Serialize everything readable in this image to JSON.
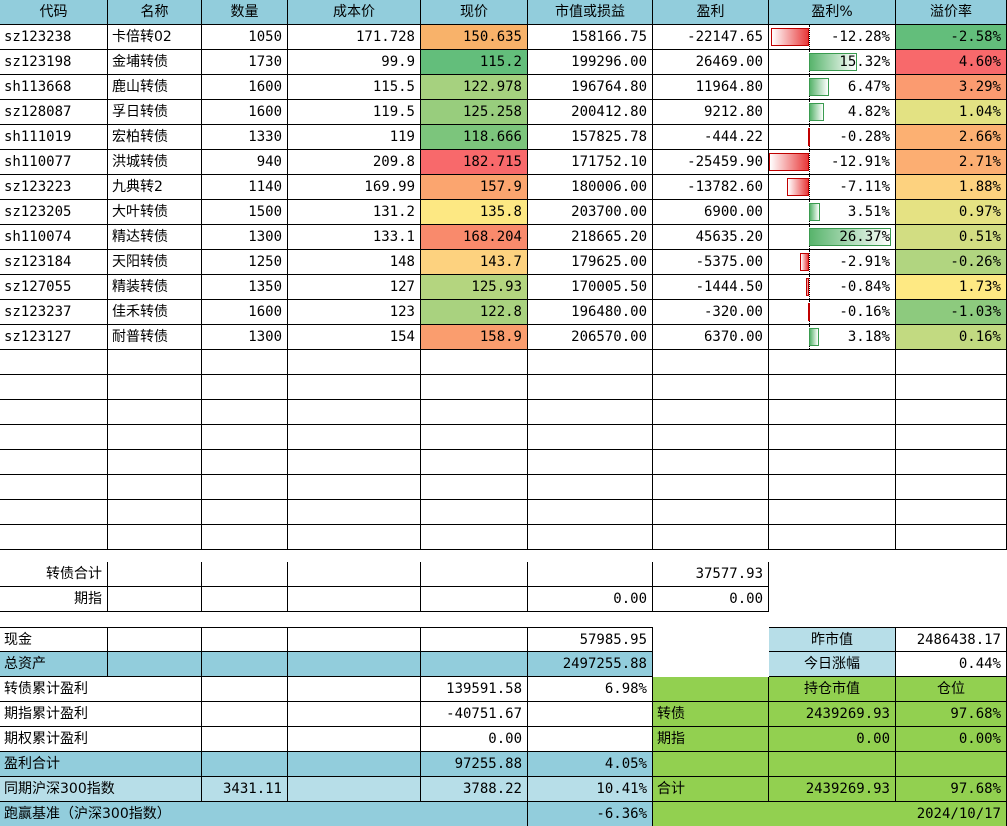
{
  "header": {
    "code": "代码",
    "name": "名称",
    "qty": "数量",
    "cost": "成本价",
    "price": "现价",
    "value": "市值或损益",
    "profit": "盈利",
    "profit_pct": "盈利%",
    "premium": "溢价率"
  },
  "rows": [
    {
      "code": "sz123238",
      "name": "卡倍转02",
      "qty": "1050",
      "cost": "171.728",
      "price": "150.635",
      "value": "158166.75",
      "profit": "-22147.65",
      "pct": "-12.28%",
      "pct_num": -12.28,
      "premium": "-2.58%"
    },
    {
      "code": "sz123198",
      "name": "金埔转债",
      "qty": "1730",
      "cost": "99.9",
      "price": "115.2",
      "value": "199296.00",
      "profit": "26469.00",
      "pct": "15.32%",
      "pct_num": 15.32,
      "premium": "4.60%"
    },
    {
      "code": "sh113668",
      "name": "鹿山转债",
      "qty": "1600",
      "cost": "115.5",
      "price": "122.978",
      "value": "196764.80",
      "profit": "11964.80",
      "pct": "6.47%",
      "pct_num": 6.47,
      "premium": "3.29%"
    },
    {
      "code": "sz128087",
      "name": "孚日转债",
      "qty": "1600",
      "cost": "119.5",
      "price": "125.258",
      "value": "200412.80",
      "profit": "9212.80",
      "pct": "4.82%",
      "pct_num": 4.82,
      "premium": "1.04%"
    },
    {
      "code": "sh111019",
      "name": "宏柏转债",
      "qty": "1330",
      "cost": "119",
      "price": "118.666",
      "value": "157825.78",
      "profit": "-444.22",
      "pct": "-0.28%",
      "pct_num": -0.28,
      "premium": "2.66%"
    },
    {
      "code": "sh110077",
      "name": "洪城转债",
      "qty": "940",
      "cost": "209.8",
      "price": "182.715",
      "value": "171752.10",
      "profit": "-25459.90",
      "pct": "-12.91%",
      "pct_num": -12.91,
      "premium": "2.71%"
    },
    {
      "code": "sz123223",
      "name": "九典转2",
      "qty": "1140",
      "cost": "169.99",
      "price": "157.9",
      "value": "180006.00",
      "profit": "-13782.60",
      "pct": "-7.11%",
      "pct_num": -7.11,
      "premium": "1.88%"
    },
    {
      "code": "sz123205",
      "name": "大叶转债",
      "qty": "1500",
      "cost": "131.2",
      "price": "135.8",
      "value": "203700.00",
      "profit": "6900.00",
      "pct": "3.51%",
      "pct_num": 3.51,
      "premium": "0.97%"
    },
    {
      "code": "sh110074",
      "name": "精达转债",
      "qty": "1300",
      "cost": "133.1",
      "price": "168.204",
      "value": "218665.20",
      "profit": "45635.20",
      "pct": "26.37%",
      "pct_num": 26.37,
      "premium": "0.51%"
    },
    {
      "code": "sz123184",
      "name": "天阳转债",
      "qty": "1250",
      "cost": "148",
      "price": "143.7",
      "value": "179625.00",
      "profit": "-5375.00",
      "pct": "-2.91%",
      "pct_num": -2.91,
      "premium": "-0.26%"
    },
    {
      "code": "sz127055",
      "name": "精装转债",
      "qty": "1350",
      "cost": "127",
      "price": "125.93",
      "value": "170005.50",
      "profit": "-1444.50",
      "pct": "-0.84%",
      "pct_num": -0.84,
      "premium": "1.73%"
    },
    {
      "code": "sz123237",
      "name": "佳禾转债",
      "qty": "1600",
      "cost": "123",
      "price": "122.8",
      "value": "196480.00",
      "profit": "-320.00",
      "pct": "-0.16%",
      "pct_num": -0.16,
      "premium": "-1.03%"
    },
    {
      "code": "sz123127",
      "name": "耐普转债",
      "qty": "1300",
      "cost": "154",
      "price": "158.9",
      "value": "206570.00",
      "profit": "6370.00",
      "pct": "3.18%",
      "pct_num": 3.18,
      "premium": "0.16%"
    }
  ],
  "colors": {
    "header_bg": "#92cddc",
    "summary_bg": "#92cddc",
    "light_blue": "#b7dee8",
    "green_panel": "#92d050",
    "price": [
      "#f8b26a",
      "#63be7b",
      "#a6d17f",
      "#98cd7d",
      "#7cc57c",
      "#f8696b",
      "#fba56f",
      "#fde883",
      "#f98a6c",
      "#fdd27f",
      "#b4d57f",
      "#a9d27f",
      "#fa9d6e"
    ],
    "premium": [
      "#63be7b",
      "#f8696b",
      "#fb9b70",
      "#e3e283",
      "#fcb072",
      "#fcae72",
      "#fdd27f",
      "#e5e283",
      "#d2dd82",
      "#b1d580",
      "#fee983",
      "#8dca7e",
      "#c2da81"
    ]
  },
  "convert_total": {
    "label": "转债合计",
    "profit": "37577.93"
  },
  "futures": {
    "label": "期指",
    "value": "0.00",
    "profit": "0.00"
  },
  "cash": {
    "label": "现金",
    "value": "57985.95"
  },
  "total_assets": {
    "label": "总资产",
    "value": "2497255.88"
  },
  "prev_value": {
    "label": "昨市值",
    "value": "2486438.17"
  },
  "today_change": {
    "label": "今日涨幅",
    "value": "0.44%"
  },
  "cb_cum": {
    "label": "转债累计盈利",
    "value": "139591.58",
    "pct": "6.98%"
  },
  "fut_cum": {
    "label": "期指累计盈利",
    "value": "-40751.67"
  },
  "opt_cum": {
    "label": "期权累计盈利",
    "value": "0.00"
  },
  "profit_total": {
    "label": "盈利合计",
    "value": "97255.88",
    "pct": "4.05%"
  },
  "hs300": {
    "label": "同期沪深300指数",
    "start": "3431.11",
    "now": "3788.22",
    "pct": "10.41%"
  },
  "benchmark": {
    "label": "跑赢基准（沪深300指数）",
    "pct": "-6.36%",
    "date": "2024/10/17"
  },
  "positions": {
    "hold_label": "持仓市值",
    "weight_label": "仓位",
    "cb": {
      "label": "转债",
      "value": "2439269.93",
      "weight": "97.68%"
    },
    "fut": {
      "label": "期指",
      "value": "0.00",
      "weight": "0.00%"
    },
    "sum": {
      "label": "合计",
      "value": "2439269.93",
      "weight": "97.68%"
    }
  }
}
